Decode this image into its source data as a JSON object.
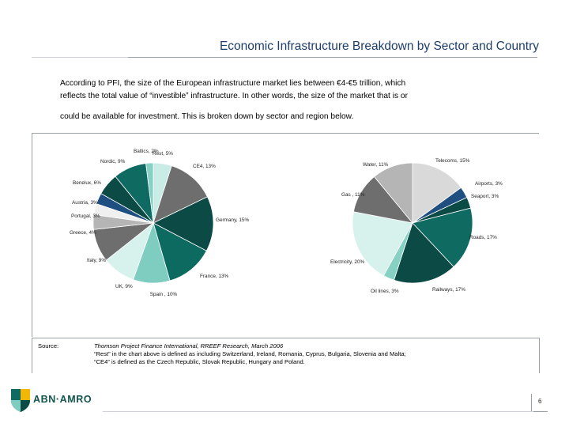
{
  "header": {
    "title": "Economic Infrastructure Breakdown by Sector and Country"
  },
  "intro": {
    "line1": "According to PFI, the size of the European infrastructure market lies between €4-€5 trillion, which",
    "line2": "reflects the total value of “investible” infrastructure.  In other words, the size of the market that is or",
    "line3": "could be available for investment.  This is broken down by sector and region below."
  },
  "chart_data": [
    {
      "type": "pie",
      "labels": [
        "Rest, 5%",
        "CE4, 13%",
        "Germany, 15%",
        "France, 13%",
        "Spain , 10%",
        "UK, 9%",
        "Italy, 9%",
        "Greece, 4%",
        "Portugal, 3%",
        "Austria, 3%",
        "Benelux, 6%",
        "Nordic, 9%",
        "Baltics, 2%"
      ],
      "values": [
        5,
        13,
        15,
        13,
        10,
        9,
        9,
        4,
        3,
        3,
        6,
        9,
        2
      ],
      "colors": [
        "#c9ece6",
        "#6e6e6e",
        "#0b4a45",
        "#0d6a60",
        "#7fcdc0",
        "#d7f1ec",
        "#6e6e6e",
        "#b5b5b5",
        "#f0f0f0",
        "#1e4f80",
        "#0b4a45",
        "#0f6b62",
        "#86d1c4"
      ]
    },
    {
      "type": "pie",
      "labels": [
        "Telecoms, 15%",
        "Airports, 3%",
        "Seaport, 3%",
        "Roads, 17%",
        "Railways, 17%",
        "Oil lines, 3%",
        "Electricity, 20%",
        "Gas , 11%",
        "Water, 11%"
      ],
      "values": [
        15,
        3,
        3,
        17,
        17,
        3,
        20,
        11,
        11
      ],
      "colors": [
        "#d9d9d9",
        "#1e4f80",
        "#0b4a45",
        "#0f6b62",
        "#0b4a45",
        "#86d1c4",
        "#d7f1ec",
        "#6e6e6e",
        "#b5b5b5"
      ]
    }
  ],
  "source": {
    "label": "Source:",
    "line1": "Thomson Project Finance International, RREEF Research, March 2006",
    "line2": "“Rest” in the chart above is defined as including Switzerland, Ireland, Romania, Cyprus, Bulgaria, Slovenia and Malta;",
    "line3": "“CE4” is defined as the Czech Republic, Slovak Republic, Hungary and Poland."
  },
  "footer": {
    "logo_text": "ABN·AMRO",
    "page_number": "6"
  }
}
